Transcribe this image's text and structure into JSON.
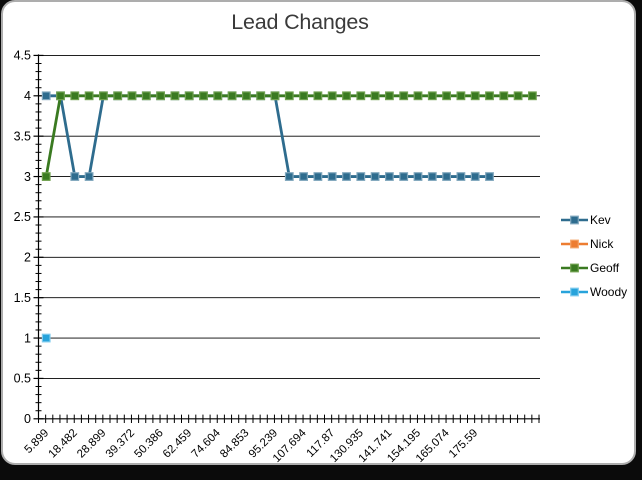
{
  "frame": {
    "background": "#0b0b0b",
    "card_background": "#ffffff",
    "card_border": "#adadad"
  },
  "chart_data": {
    "type": "line",
    "title": "Lead Changes",
    "title_color": "#3a3a3a",
    "x_labels": [
      "5.899",
      "18.482",
      "28.899",
      "39.372",
      "50.386",
      "62.459",
      "74.604",
      "84.853",
      "95.239",
      "107.694",
      "117.87",
      "130.935",
      "141.741",
      "154.195",
      "165.074",
      "175.59"
    ],
    "x_label_interval": 2,
    "n_categories": 35,
    "ylim": [
      0,
      4.5
    ],
    "y_major_step": 0.5,
    "y_minor_step": 0.1,
    "grid": "horizontal-major",
    "axis_color": "#000000",
    "legend_position": "right",
    "series": [
      {
        "name": "Kev",
        "color": "#2e6c8e",
        "marker_edge": "#7fa6bc",
        "values": [
          4,
          4,
          3,
          3,
          4,
          4,
          4,
          4,
          4,
          4,
          4,
          4,
          4,
          4,
          4,
          4,
          4,
          3,
          3,
          3,
          3,
          3,
          3,
          3,
          3,
          3,
          3,
          3,
          3,
          3,
          3,
          3,
          null,
          null,
          null
        ]
      },
      {
        "name": "Nick",
        "color": "#ed7d31",
        "marker_edge": "#f4a265",
        "values": [
          null,
          null,
          null,
          null,
          null,
          null,
          null,
          null,
          null,
          null,
          null,
          null,
          null,
          null,
          null,
          null,
          null,
          null,
          null,
          null,
          null,
          null,
          null,
          null,
          null,
          null,
          null,
          null,
          null,
          null,
          null,
          null,
          null,
          null,
          null
        ]
      },
      {
        "name": "Geoff",
        "color": "#3a7a21",
        "marker_edge": "#6fa04e",
        "values": [
          3,
          4,
          4,
          4,
          4,
          4,
          4,
          4,
          4,
          4,
          4,
          4,
          4,
          4,
          4,
          4,
          4,
          4,
          4,
          4,
          4,
          4,
          4,
          4,
          4,
          4,
          4,
          4,
          4,
          4,
          4,
          4,
          4,
          4,
          4
        ]
      },
      {
        "name": "Woody",
        "color": "#27a3db",
        "marker_edge": "#7fcbee",
        "values": [
          1,
          null,
          null,
          null,
          null,
          null,
          null,
          null,
          null,
          null,
          null,
          null,
          null,
          null,
          null,
          null,
          null,
          null,
          null,
          null,
          null,
          null,
          null,
          null,
          null,
          null,
          null,
          null,
          null,
          null,
          null,
          null,
          null,
          null,
          null
        ]
      }
    ]
  }
}
